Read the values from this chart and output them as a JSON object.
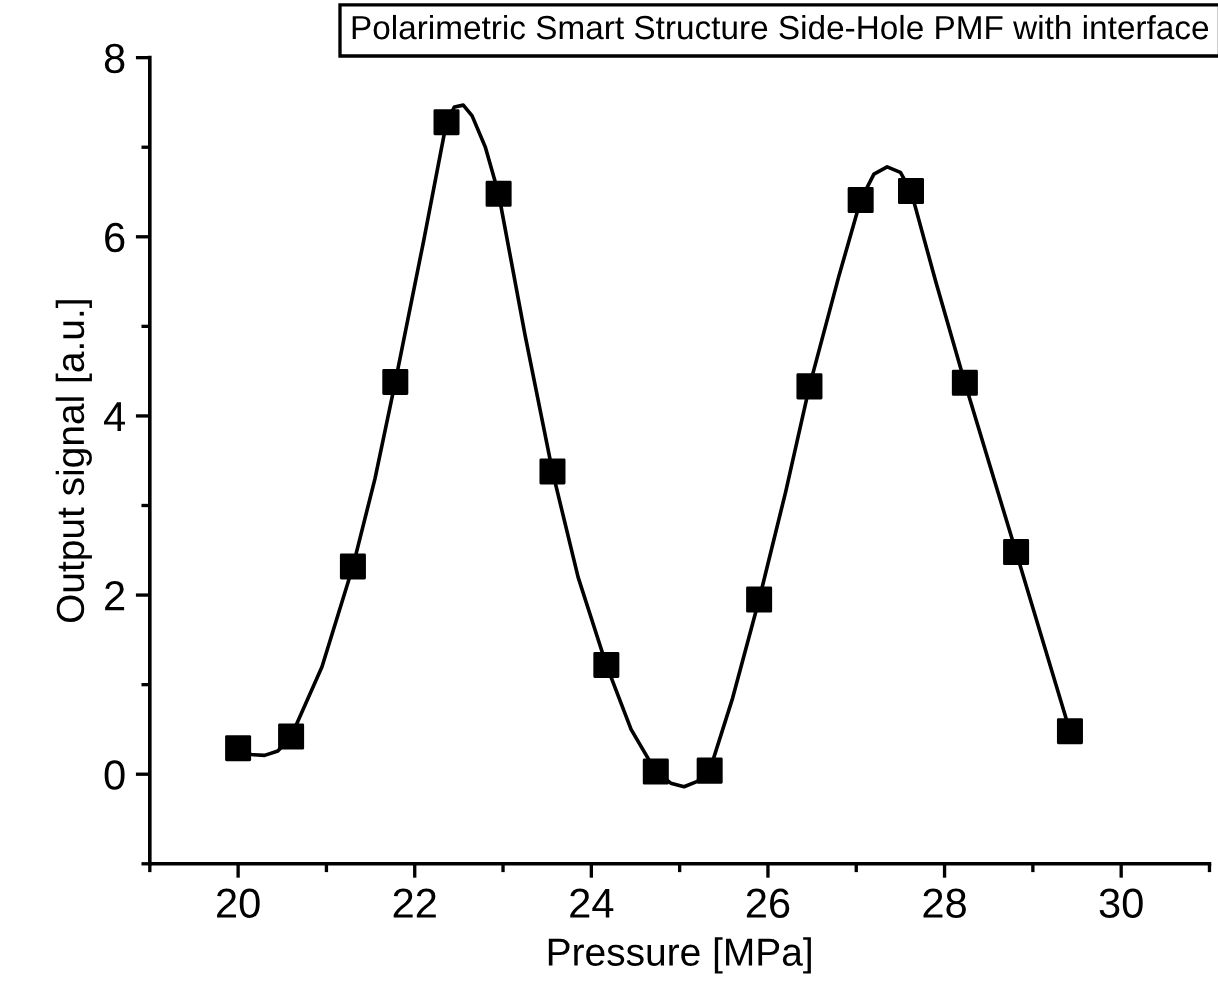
{
  "chart_data": {
    "type": "scatter",
    "title": "Polarimetric Smart Structure Side-Hole PMF with interface",
    "xlabel": "Pressure [MPa]",
    "ylabel": "Output signal [a.u.]",
    "series": [
      {
        "color": "#000000",
        "marker": "square",
        "x": [
          20,
          20.6,
          21.3,
          21.78,
          22.36,
          22.95,
          23.56,
          24.17,
          24.73,
          25.34,
          25.9,
          26.47,
          27.05,
          27.62,
          28.23,
          28.81,
          29.42
        ],
        "values": [
          0.29,
          0.42,
          2.32,
          4.38,
          7.28,
          6.48,
          3.38,
          1.22,
          0.03,
          0.04,
          1.95,
          4.33,
          6.41,
          6.51,
          4.37,
          2.48,
          0.48
        ]
      },
      {
        "type": "line",
        "color": "#000000",
        "marker": "none",
        "line_style": "solid",
        "x": [
          20,
          20.15,
          20.3,
          20.45,
          20.6,
          20.95,
          21.3,
          21.55,
          21.78,
          22.1,
          22.36,
          22.45,
          22.55,
          22.65,
          22.8,
          22.95,
          23.25,
          23.56,
          23.85,
          24.17,
          24.45,
          24.73,
          24.9,
          25.05,
          25.2,
          25.34,
          25.6,
          25.9,
          26.2,
          26.47,
          26.8,
          27.05,
          27.2,
          27.35,
          27.5,
          27.62,
          27.9,
          28.23,
          28.81,
          29.42
        ],
        "values": [
          0.29,
          0.22,
          0.21,
          0.26,
          0.42,
          1.2,
          2.32,
          3.3,
          4.38,
          5.95,
          7.28,
          7.45,
          7.47,
          7.35,
          7.0,
          6.48,
          4.9,
          3.38,
          2.2,
          1.22,
          0.5,
          0.03,
          -0.1,
          -0.14,
          -0.08,
          0.04,
          0.85,
          1.95,
          3.15,
          4.33,
          5.55,
          6.41,
          6.7,
          6.78,
          6.72,
          6.51,
          5.5,
          4.37,
          2.48,
          0.48
        ]
      }
    ],
    "xlim": [
      19,
      31
    ],
    "ylim": [
      -1,
      8
    ],
    "xticks": [
      {
        "value": 19,
        "label": null
      },
      20,
      {
        "value": 21,
        "label": null
      },
      22,
      {
        "value": 23,
        "label": null
      },
      24,
      {
        "value": 25,
        "label": null
      },
      26,
      {
        "value": 27,
        "label": null
      },
      28,
      {
        "value": 29,
        "label": null
      },
      30,
      {
        "value": 31,
        "label": null
      }
    ],
    "yticks": [
      {
        "value": -1,
        "label": null
      },
      0,
      {
        "value": 1,
        "label": null
      },
      2,
      {
        "value": 3,
        "label": null
      },
      4,
      {
        "value": 5,
        "label": null
      },
      6,
      {
        "value": 7,
        "label": null
      },
      8
    ],
    "grid": false
  }
}
